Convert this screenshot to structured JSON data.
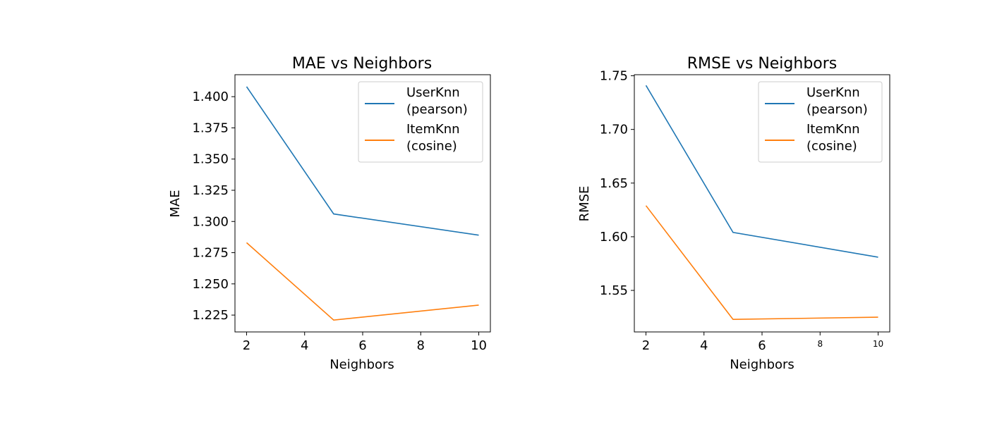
{
  "chart_data": [
    {
      "type": "line",
      "title": "MAE vs Neighbors",
      "xlabel": "Neighbors",
      "ylabel": "MAE",
      "x": [
        2,
        5,
        10
      ],
      "xlim": [
        1.6,
        10.4
      ],
      "ylim": [
        1.2115,
        1.4176
      ],
      "xticks": [
        2,
        4,
        6,
        8,
        10
      ],
      "xtick_labels": [
        "2",
        "4",
        "6",
        "8",
        "10"
      ],
      "yticks": [
        1.225,
        1.25,
        1.275,
        1.3,
        1.325,
        1.35,
        1.375,
        1.4
      ],
      "ytick_labels": [
        "1.225",
        "1.250",
        "1.275",
        "1.300",
        "1.325",
        "1.350",
        "1.375",
        "1.400"
      ],
      "grid": false,
      "legend_position": "top-right",
      "series": [
        {
          "name": "UserKnn\n(pearson)",
          "color": "#1f77b4",
          "values": [
            1.408,
            1.306,
            1.289
          ]
        },
        {
          "name": "ItemKnn\n(cosine)",
          "color": "#ff7f0e",
          "values": [
            1.283,
            1.221,
            1.233
          ]
        }
      ]
    },
    {
      "type": "line",
      "title": "RMSE vs Neighbors",
      "xlabel": "Neighbors",
      "ylabel": "RMSE",
      "x": [
        2,
        5,
        10
      ],
      "xlim": [
        1.6,
        10.4
      ],
      "ylim": [
        1.5113,
        1.751
      ],
      "xticks": [
        2,
        4,
        6,
        8,
        10
      ],
      "xtick_labels": [
        "2",
        "4",
        "6",
        "8",
        "10"
      ],
      "xtick_small": [
        false,
        false,
        false,
        true,
        true
      ],
      "yticks": [
        1.55,
        1.6,
        1.65,
        1.7,
        1.75
      ],
      "ytick_labels": [
        "1.55",
        "1.60",
        "1.65",
        "1.70",
        "1.75"
      ],
      "grid": false,
      "legend_position": "top-right",
      "series": [
        {
          "name": "UserKnn\n(pearson)",
          "color": "#1f77b4",
          "values": [
            1.741,
            1.604,
            1.581
          ]
        },
        {
          "name": "ItemKnn\n(cosine)",
          "color": "#ff7f0e",
          "values": [
            1.629,
            1.523,
            1.525
          ]
        }
      ]
    }
  ]
}
